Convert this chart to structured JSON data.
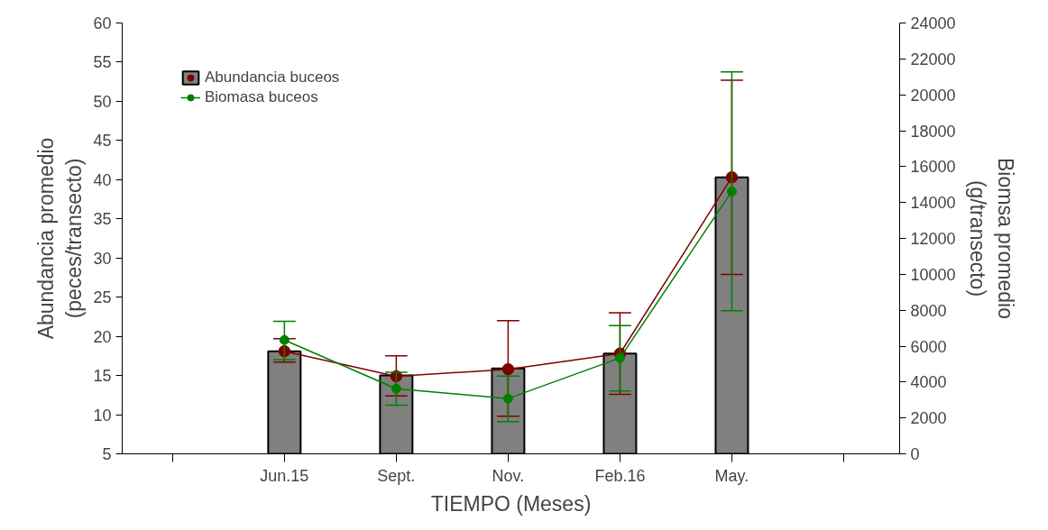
{
  "chart_data": {
    "type": "bar",
    "xlabel": "TIEMPO (Meses)",
    "ylabel": "Abundancia promedio\n(peces/transecto)",
    "y2label": "Biomsa promedio\n(g/transecto)",
    "categories": [
      null,
      "Jun.15",
      "Sept.",
      "Nov.",
      "Feb.16",
      "May.",
      null
    ],
    "series": [
      {
        "name": "Abundancia buceos",
        "color": "#808080",
        "values": [
          null,
          18.1,
          15.0,
          15.9,
          17.8,
          40.3,
          null
        ]
      },
      {
        "type": "line",
        "color": "#800000",
        "values": [
          null,
          18.1,
          14.9,
          15.8,
          17.8,
          40.3,
          null
        ],
        "errors": [
          null,
          [
            16.7,
            19.7
          ],
          [
            12.4,
            17.5
          ],
          [
            9.8,
            22.0
          ],
          [
            12.6,
            23.0
          ],
          [
            27.9,
            52.7
          ],
          null
        ]
      },
      {
        "name": "Biomasa buceos",
        "type": "line",
        "axis": "y2",
        "color": "#008000",
        "values": [
          null,
          6340,
          3630,
          3080,
          5340,
          14620,
          null
        ],
        "errors": [
          null,
          [
            5250,
            7380
          ],
          [
            2710,
            4550
          ],
          [
            1790,
            4330
          ],
          [
            3500,
            7140
          ],
          [
            7970,
            21270
          ],
          null
        ]
      }
    ],
    "ylim": [
      5,
      60
    ],
    "yticks": [
      5,
      10,
      15,
      20,
      25,
      30,
      35,
      40,
      45,
      50,
      55,
      60
    ],
    "y2lim": [
      0,
      24000
    ],
    "y2ticks": [
      0,
      2000,
      4000,
      6000,
      8000,
      10000,
      12000,
      14000,
      16000,
      18000,
      20000,
      22000,
      24000
    ],
    "marker": "circle",
    "legend": "top left",
    "grid": false
  }
}
